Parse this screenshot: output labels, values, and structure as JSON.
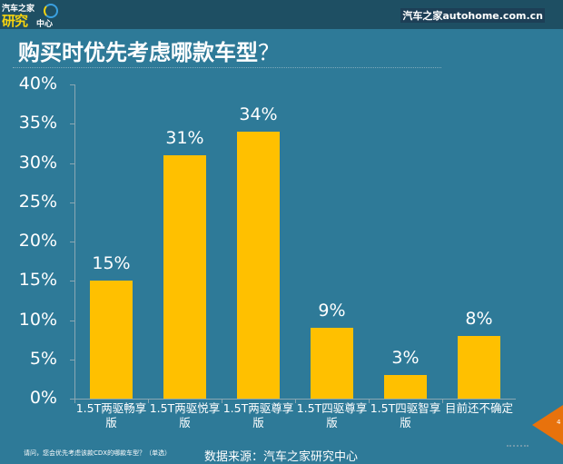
{
  "header": {
    "logo": {
      "line1": "汽车之家",
      "line2": "研究",
      "line3": "中心"
    },
    "brand": "汽车之家autohome.com.cn"
  },
  "title": {
    "main": "购买时优先考虑哪款车型",
    "q": "？"
  },
  "chart_data": {
    "type": "bar",
    "title": "购买时优先考虑哪款车型？",
    "xlabel": "",
    "ylabel": "",
    "ylim": [
      0,
      40
    ],
    "yticks": [
      "0%",
      "5%",
      "10%",
      "15%",
      "20%",
      "25%",
      "30%",
      "35%",
      "40%"
    ],
    "categories": [
      "1.5T两驱畅享版",
      "1.5T两驱悦享版",
      "1.5T两驱尊享版",
      "1.5T四驱尊享版",
      "1.5T四驱智享版",
      "目前还不确定"
    ],
    "values": [
      15,
      31,
      34,
      9,
      3,
      8
    ],
    "labels": [
      "15%",
      "31%",
      "34%",
      "9%",
      "3%",
      "8%"
    ],
    "bar_color": "#ffc000",
    "grid": false,
    "legend": "none"
  },
  "cats": [
    {
      "l1": "1.5T两驱畅享",
      "l2": "版"
    },
    {
      "l1": "1.5T两驱悦享",
      "l2": "版"
    },
    {
      "l1": "1.5T两驱尊享",
      "l2": "版"
    },
    {
      "l1": "1.5T四驱尊享",
      "l2": "版"
    },
    {
      "l1": "1.5T四驱智享",
      "l2": "版"
    },
    {
      "l1": "目前还不确定",
      "l2": ""
    }
  ],
  "footer": {
    "question": "请问，您会优先考虑该款CDX的哪款车型？（单选）",
    "source": "数据来源：汽车之家研究中心",
    "page": "4"
  },
  "colors": {
    "background": "#2e7a98",
    "topbar": "#1e4f63",
    "bar": "#ffc000",
    "arrow": "#e8720c"
  }
}
